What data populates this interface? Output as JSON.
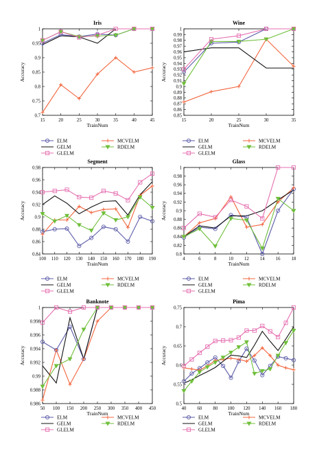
{
  "chart_data": [
    {
      "type": "line",
      "title": "Iris",
      "xlabel": "TrainNum",
      "ylabel": "Accuracy",
      "xlim": [
        15,
        45
      ],
      "ylim": [
        0.7,
        1.0
      ],
      "xticks": [
        15,
        20,
        25,
        30,
        35,
        40,
        45
      ],
      "xticklabels": [
        "15",
        "20",
        "25",
        "30",
        "35",
        "40",
        "45"
      ],
      "yticks": [
        0.7,
        0.75,
        0.8,
        0.85,
        0.9,
        0.95,
        1.0
      ],
      "yticklabels": [
        "0.7",
        "0.75",
        "0.8",
        "0.85",
        "0.9",
        "0.95",
        "1"
      ],
      "x": [
        15,
        20,
        25,
        30,
        35,
        40,
        45
      ],
      "series": [
        {
          "name": "ELM",
          "values": [
            0.95,
            0.98,
            0.973,
            0.982,
            0.978,
            1.0,
            1.0
          ]
        },
        {
          "name": "MCVELM",
          "values": [
            0.71,
            0.806,
            0.758,
            0.843,
            0.9,
            0.85,
            0.865
          ]
        },
        {
          "name": "GELM",
          "values": [
            0.945,
            0.976,
            0.972,
            0.95,
            1.0,
            1.0,
            1.0
          ]
        },
        {
          "name": "RDELM",
          "values": [
            0.96,
            0.99,
            0.973,
            0.975,
            0.978,
            1.0,
            1.0
          ]
        },
        {
          "name": "GLELM",
          "values": [
            0.96,
            0.99,
            0.97,
            0.978,
            1.0,
            1.0,
            1.0
          ]
        }
      ]
    },
    {
      "type": "line",
      "title": "Wine",
      "xlabel": "TrainNum",
      "ylabel": "Accuracy",
      "xlim": [
        15,
        35
      ],
      "ylim": [
        0.85,
        1.0
      ],
      "xticks": [
        15,
        20,
        25,
        30,
        35
      ],
      "xticklabels": [
        "15",
        "20",
        "25",
        "30",
        "35"
      ],
      "yticks": [
        0.85,
        0.86,
        0.87,
        0.88,
        0.89,
        0.9,
        0.91,
        0.92,
        0.93,
        0.94,
        0.95,
        0.96,
        0.97,
        0.98,
        0.99,
        1.0
      ],
      "yticklabels": [
        "0.85",
        "0.86",
        "0.87",
        "0.88",
        "0.89",
        "0.9",
        "0.91",
        "0.92",
        "0.93",
        "0.94",
        "0.95",
        "0.96",
        "0.97",
        "0.98",
        "0.99",
        "1"
      ],
      "x": [
        15,
        20,
        25,
        30,
        35
      ],
      "series": [
        {
          "name": "ELM",
          "values": [
            0.925,
            0.975,
            0.977,
            1.0,
            1.0
          ]
        },
        {
          "name": "MCVELM",
          "values": [
            0.873,
            0.891,
            0.9,
            0.982,
            0.935
          ]
        },
        {
          "name": "GELM",
          "values": [
            0.96,
            0.967,
            0.967,
            0.932,
            0.932
          ]
        },
        {
          "name": "RDELM",
          "values": [
            0.905,
            0.978,
            0.978,
            0.982,
            1.0
          ]
        },
        {
          "name": "GLELM",
          "values": [
            0.93,
            0.982,
            0.988,
            1.0,
            1.0
          ]
        }
      ]
    },
    {
      "type": "line",
      "title": "Segment",
      "xlabel": "TrainNum",
      "ylabel": "Accuracy",
      "xlim": [
        100,
        190
      ],
      "ylim": [
        0.84,
        0.98
      ],
      "xticks": [
        100,
        110,
        120,
        130,
        140,
        150,
        160,
        170,
        180,
        190
      ],
      "xticklabels": [
        "100",
        "110",
        "120",
        "130",
        "140",
        "150",
        "160",
        "170",
        "180",
        "190"
      ],
      "yticks": [
        0.84,
        0.86,
        0.88,
        0.9,
        0.92,
        0.94,
        0.96,
        0.98
      ],
      "yticklabels": [
        "0.84",
        "0.86",
        "0.88",
        "0.9",
        "0.92",
        "0.94",
        "0.96",
        "0.98"
      ],
      "x": [
        100,
        110,
        120,
        130,
        140,
        150,
        160,
        170,
        180,
        190
      ],
      "series": [
        {
          "name": "ELM",
          "values": [
            0.876,
            0.88,
            0.881,
            0.853,
            0.866,
            0.884,
            0.88,
            0.86,
            0.9,
            0.893
          ]
        },
        {
          "name": "MCVELM",
          "values": [
            0.872,
            0.895,
            0.895,
            0.917,
            0.907,
            0.912,
            0.913,
            0.883,
            0.935,
            0.95
          ]
        },
        {
          "name": "GELM",
          "values": [
            0.92,
            0.934,
            0.922,
            0.905,
            0.916,
            0.925,
            0.926,
            0.903,
            0.936,
            0.957
          ]
        },
        {
          "name": "RDELM",
          "values": [
            0.905,
            0.893,
            0.902,
            0.887,
            0.878,
            0.906,
            0.895,
            0.9,
            0.932,
            0.915
          ]
        },
        {
          "name": "GLELM",
          "values": [
            0.94,
            0.942,
            0.944,
            0.932,
            0.931,
            0.942,
            0.938,
            0.927,
            0.956,
            0.97
          ]
        }
      ]
    },
    {
      "type": "line",
      "title": "Glass",
      "xlabel": "TrainNum",
      "ylabel": "Accuracy",
      "xlim": [
        4,
        18
      ],
      "ylim": [
        0.8,
        1.0
      ],
      "xticks": [
        4,
        6,
        8,
        10,
        12,
        14,
        16,
        18
      ],
      "xticklabels": [
        "4",
        "6",
        "8",
        "10",
        "12",
        "14",
        "16",
        "18"
      ],
      "yticks": [
        0.8,
        0.82,
        0.84,
        0.86,
        0.88,
        0.9,
        0.92,
        0.94,
        0.96,
        0.98,
        1.0
      ],
      "yticklabels": [
        "0.8",
        "0.82",
        "0.84",
        "0.86",
        "0.88",
        "0.9",
        "0.92",
        "0.94",
        "0.96",
        "0.98",
        "1"
      ],
      "x": [
        4,
        6,
        8,
        10,
        12,
        14,
        16,
        18
      ],
      "series": [
        {
          "name": "ELM",
          "values": [
            0.838,
            0.862,
            0.858,
            0.89,
            0.885,
            0.8,
            0.9,
            0.95
          ]
        },
        {
          "name": "MCVELM",
          "values": [
            0.84,
            0.872,
            0.882,
            0.932,
            0.862,
            0.868,
            0.92,
            0.953
          ]
        },
        {
          "name": "GELM",
          "values": [
            0.84,
            0.865,
            0.86,
            0.888,
            0.888,
            0.9,
            0.925,
            0.948
          ]
        },
        {
          "name": "RDELM",
          "values": [
            0.84,
            0.858,
            0.818,
            0.882,
            0.878,
            0.813,
            0.928,
            0.9
          ]
        },
        {
          "name": "GLELM",
          "values": [
            0.86,
            0.893,
            0.885,
            0.925,
            0.91,
            0.882,
            1.0,
            1.0
          ]
        }
      ]
    },
    {
      "type": "line",
      "title": "Banknote",
      "xlabel": "TrainNum",
      "ylabel": "Accuracy",
      "xlim": [
        50,
        450
      ],
      "ylim": [
        0.986,
        1.0
      ],
      "xticks": [
        50,
        100,
        150,
        200,
        250,
        300,
        350,
        400,
        450
      ],
      "xticklabels": [
        "50",
        "100",
        "150",
        "200",
        "250",
        "300",
        "350",
        "400",
        "450"
      ],
      "yticks": [
        0.986,
        0.988,
        0.99,
        0.992,
        0.994,
        0.996,
        0.998,
        1.0
      ],
      "yticklabels": [
        "0.986",
        "0.988",
        "0.99",
        "0.992",
        "0.994",
        "0.996",
        "0.998",
        "1"
      ],
      "x": [
        50,
        100,
        150,
        200,
        250,
        300,
        350,
        400,
        450
      ],
      "series": [
        {
          "name": "ELM",
          "values": [
            0.995,
            0.9938,
            0.9972,
            0.9925,
            1.0,
            1.0,
            1.0,
            1.0,
            1.0
          ]
        },
        {
          "name": "MCVELM",
          "values": [
            0.9865,
            0.9938,
            0.9888,
            0.9925,
            0.998,
            1.0,
            1.0,
            1.0,
            1.0
          ]
        },
        {
          "name": "GELM",
          "values": [
            0.9915,
            0.989,
            0.9985,
            0.9925,
            1.0,
            1.0,
            1.0,
            1.0,
            1.0
          ]
        },
        {
          "name": "RDELM",
          "values": [
            0.9885,
            0.9915,
            0.9925,
            0.9968,
            1.0,
            1.0,
            1.0,
            1.0,
            1.0
          ]
        },
        {
          "name": "GLELM",
          "values": [
            0.9978,
            1.0,
            0.9994,
            1.0,
            1.0,
            1.0,
            1.0,
            1.0,
            1.0
          ]
        }
      ]
    },
    {
      "type": "line",
      "title": "Pima",
      "xlabel": "TrainNum",
      "ylabel": "Accuracy",
      "xlim": [
        40,
        180
      ],
      "ylim": [
        0.5,
        0.75
      ],
      "xticks": [
        40,
        60,
        80,
        100,
        120,
        140,
        160,
        180
      ],
      "xticklabels": [
        "40",
        "60",
        "80",
        "100",
        "120",
        "140",
        "160",
        "180"
      ],
      "yticks": [
        0.5,
        0.55,
        0.6,
        0.65,
        0.7,
        0.75
      ],
      "yticklabels": [
        "0.5",
        "0.55",
        "0.6",
        "0.65",
        "0.7",
        "0.75"
      ],
      "x": [
        40,
        50,
        60,
        70,
        80,
        90,
        100,
        110,
        120,
        130,
        140,
        150,
        160,
        170,
        180
      ],
      "series": [
        {
          "name": "ELM",
          "values": [
            0.558,
            0.578,
            0.592,
            0.607,
            0.62,
            0.598,
            0.567,
            0.61,
            0.643,
            0.612,
            0.574,
            0.598,
            0.622,
            0.618,
            0.613
          ]
        },
        {
          "name": "MCVELM",
          "values": [
            0.593,
            0.59,
            0.587,
            0.598,
            0.612,
            0.615,
            0.618,
            0.615,
            0.61,
            0.625,
            0.645,
            0.625,
            0.6,
            0.593,
            0.588
          ]
        },
        {
          "name": "GELM",
          "values": [
            0.553,
            0.562,
            0.573,
            0.583,
            0.594,
            0.61,
            0.626,
            0.624,
            0.62,
            0.652,
            0.688,
            0.662,
            0.638,
            0.668,
            0.7
          ]
        },
        {
          "name": "RDELM",
          "values": [
            0.533,
            0.558,
            0.582,
            0.595,
            0.607,
            0.62,
            0.633,
            0.647,
            0.66,
            0.578,
            0.585,
            0.59,
            0.625,
            0.658,
            0.69
          ]
        },
        {
          "name": "GLELM",
          "values": [
            0.598,
            0.615,
            0.632,
            0.648,
            0.663,
            0.664,
            0.665,
            0.672,
            0.69,
            0.69,
            0.702,
            0.688,
            0.673,
            0.71,
            0.75
          ]
        }
      ]
    }
  ],
  "legend": {
    "entries": [
      {
        "name": "ELM",
        "color": "#5a5aa8",
        "marker": "circle"
      },
      {
        "name": "MCVELM",
        "color": "#f2643c",
        "marker": "plus"
      },
      {
        "name": "GELM",
        "color": "#111111",
        "marker": "none"
      },
      {
        "name": "RDELM",
        "color": "#6fbf3a",
        "marker": "triangle-down"
      },
      {
        "name": "GLELM",
        "color": "#e56fb0",
        "marker": "square"
      }
    ]
  },
  "colors": {
    "ELM": "#5a5aa8",
    "MCVELM": "#f2643c",
    "GELM": "#111111",
    "RDELM": "#6fbf3a",
    "GLELM": "#e56fb0"
  }
}
